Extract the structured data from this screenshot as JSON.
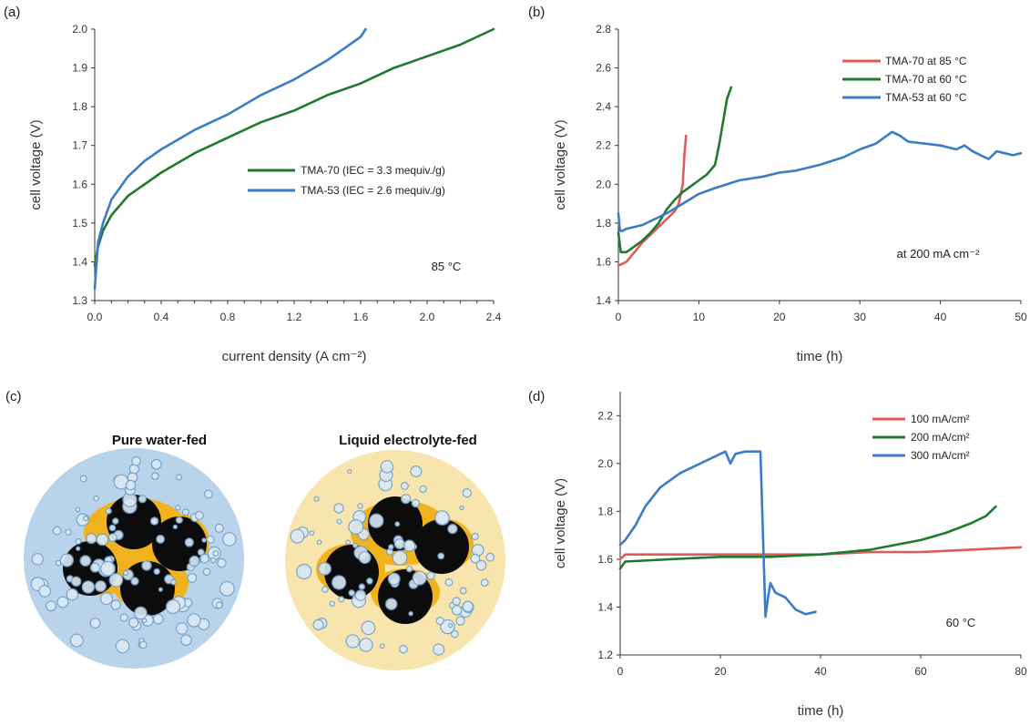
{
  "colors": {
    "red": "#e05a5a",
    "green": "#1f7a2e",
    "blue": "#3a7cc6",
    "axis": "#333333",
    "water_bg": "#b8d3ea",
    "electrolyte_bg": "#f8e4ad",
    "ionomer": "#f0b21d",
    "particle": "#0c0c0c",
    "bubble": "#6e9fcb"
  },
  "chart_data": [
    {
      "panel": "(a)",
      "type": "line",
      "xlabel": "current density (A cm⁻²)",
      "ylabel": "cell voltage (V)",
      "xlim": [
        0,
        2.4
      ],
      "ylim": [
        1.3,
        2.0
      ],
      "xticks": [
        "0.0",
        "0.4",
        "0.8",
        "1.2",
        "1.6",
        "2.0",
        "2.4"
      ],
      "yticks": [
        "1.3",
        "1.4",
        "1.5",
        "1.6",
        "1.7",
        "1.8",
        "1.9",
        "2.0"
      ],
      "annotation": "85 °C",
      "legend_position": "center-right",
      "series": [
        {
          "name": "TMA-70 (IEC = 3.3 mequiv./g)",
          "color": "green",
          "x": [
            0.0,
            0.02,
            0.05,
            0.1,
            0.2,
            0.3,
            0.4,
            0.6,
            0.8,
            1.0,
            1.2,
            1.4,
            1.6,
            1.8,
            2.0,
            2.2,
            2.4
          ],
          "y": [
            1.39,
            1.44,
            1.48,
            1.52,
            1.57,
            1.6,
            1.63,
            1.68,
            1.72,
            1.76,
            1.79,
            1.83,
            1.86,
            1.9,
            1.93,
            1.96,
            2.0
          ]
        },
        {
          "name": "TMA-53 (IEC = 2.6 mequiv./g)",
          "color": "blue",
          "x": [
            0.0,
            0.02,
            0.05,
            0.1,
            0.2,
            0.3,
            0.4,
            0.6,
            0.8,
            1.0,
            1.2,
            1.4,
            1.6,
            1.63
          ],
          "y": [
            1.33,
            1.45,
            1.5,
            1.56,
            1.62,
            1.66,
            1.69,
            1.74,
            1.78,
            1.83,
            1.87,
            1.92,
            1.98,
            2.0
          ]
        }
      ]
    },
    {
      "panel": "(b)",
      "type": "line",
      "xlabel": "time (h)",
      "ylabel": "cell voltage (V)",
      "xlim": [
        0,
        50
      ],
      "ylim": [
        1.4,
        2.8
      ],
      "xticks": [
        "0",
        "10",
        "20",
        "30",
        "40",
        "50"
      ],
      "yticks": [
        "1.4",
        "1.6",
        "1.8",
        "2.0",
        "2.2",
        "2.4",
        "2.6",
        "2.8"
      ],
      "annotation": "at 200 mA cm⁻²",
      "legend_position": "top-right",
      "series": [
        {
          "name": "TMA-70 at 85 °C",
          "color": "red",
          "x": [
            0,
            1,
            2,
            3,
            4,
            5,
            6,
            7,
            7.5,
            8,
            8.2,
            8.4
          ],
          "y": [
            1.58,
            1.6,
            1.65,
            1.7,
            1.74,
            1.78,
            1.82,
            1.86,
            1.9,
            2.0,
            2.15,
            2.25
          ]
        },
        {
          "name": "TMA-70 at 60 °C",
          "color": "green",
          "x": [
            0,
            0.3,
            1,
            2,
            3,
            4,
            5,
            6,
            7,
            8,
            9,
            10,
            11,
            12,
            12.5,
            13,
            13.5,
            14
          ],
          "y": [
            1.75,
            1.65,
            1.65,
            1.68,
            1.71,
            1.75,
            1.8,
            1.87,
            1.92,
            1.96,
            1.99,
            2.02,
            2.05,
            2.1,
            2.2,
            2.32,
            2.44,
            2.5
          ]
        },
        {
          "name": "TMA-53 at 60 °C",
          "color": "blue",
          "x": [
            0,
            0.2,
            0.5,
            1,
            2,
            3,
            4,
            5,
            6,
            8,
            10,
            12,
            15,
            18,
            20,
            22,
            25,
            28,
            30,
            32,
            33,
            34,
            35,
            36,
            38,
            40,
            42,
            43,
            44,
            45,
            46,
            47,
            48,
            49,
            50
          ],
          "y": [
            1.85,
            1.76,
            1.76,
            1.77,
            1.78,
            1.79,
            1.81,
            1.83,
            1.85,
            1.9,
            1.95,
            1.98,
            2.02,
            2.04,
            2.06,
            2.07,
            2.1,
            2.14,
            2.18,
            2.21,
            2.24,
            2.27,
            2.25,
            2.22,
            2.21,
            2.2,
            2.18,
            2.2,
            2.17,
            2.15,
            2.13,
            2.17,
            2.16,
            2.15,
            2.16
          ]
        }
      ]
    },
    {
      "panel": "(d)",
      "type": "line",
      "xlabel": "time (h)",
      "ylabel": "cell voltage (V)",
      "xlim": [
        0,
        80
      ],
      "ylim": [
        1.2,
        2.3
      ],
      "xticks": [
        "0",
        "20",
        "40",
        "60",
        "80"
      ],
      "yticks": [
        "1.2",
        "1.4",
        "1.6",
        "1.8",
        "2.0",
        "2.2"
      ],
      "annotation": "60 °C",
      "legend_position": "top-right",
      "series": [
        {
          "name": "100 mA/cm²",
          "color": "red",
          "x": [
            0,
            1,
            10,
            20,
            30,
            40,
            50,
            60,
            70,
            80
          ],
          "y": [
            1.6,
            1.62,
            1.62,
            1.62,
            1.62,
            1.62,
            1.63,
            1.63,
            1.64,
            1.65
          ]
        },
        {
          "name": "200 mA/cm²",
          "color": "green",
          "x": [
            0,
            1,
            10,
            20,
            30,
            40,
            50,
            55,
            60,
            65,
            70,
            73,
            75
          ],
          "y": [
            1.56,
            1.59,
            1.6,
            1.61,
            1.61,
            1.62,
            1.64,
            1.66,
            1.68,
            1.71,
            1.75,
            1.78,
            1.82
          ]
        },
        {
          "name": "300 mA/cm²",
          "color": "blue",
          "x": [
            0,
            1,
            3,
            5,
            8,
            12,
            15,
            18,
            21,
            22,
            23,
            25,
            27,
            28,
            28.5,
            29,
            29.5,
            30,
            31,
            33,
            35,
            37,
            39
          ],
          "y": [
            1.66,
            1.68,
            1.74,
            1.82,
            1.9,
            1.96,
            1.99,
            2.02,
            2.05,
            2.0,
            2.04,
            2.05,
            2.05,
            2.05,
            1.7,
            1.36,
            1.44,
            1.5,
            1.46,
            1.44,
            1.39,
            1.37,
            1.38
          ]
        }
      ]
    }
  ],
  "panel_c": {
    "label": "(c)",
    "left_title": "Pure water-fed",
    "right_title": "Liquid electrolyte-fed"
  }
}
